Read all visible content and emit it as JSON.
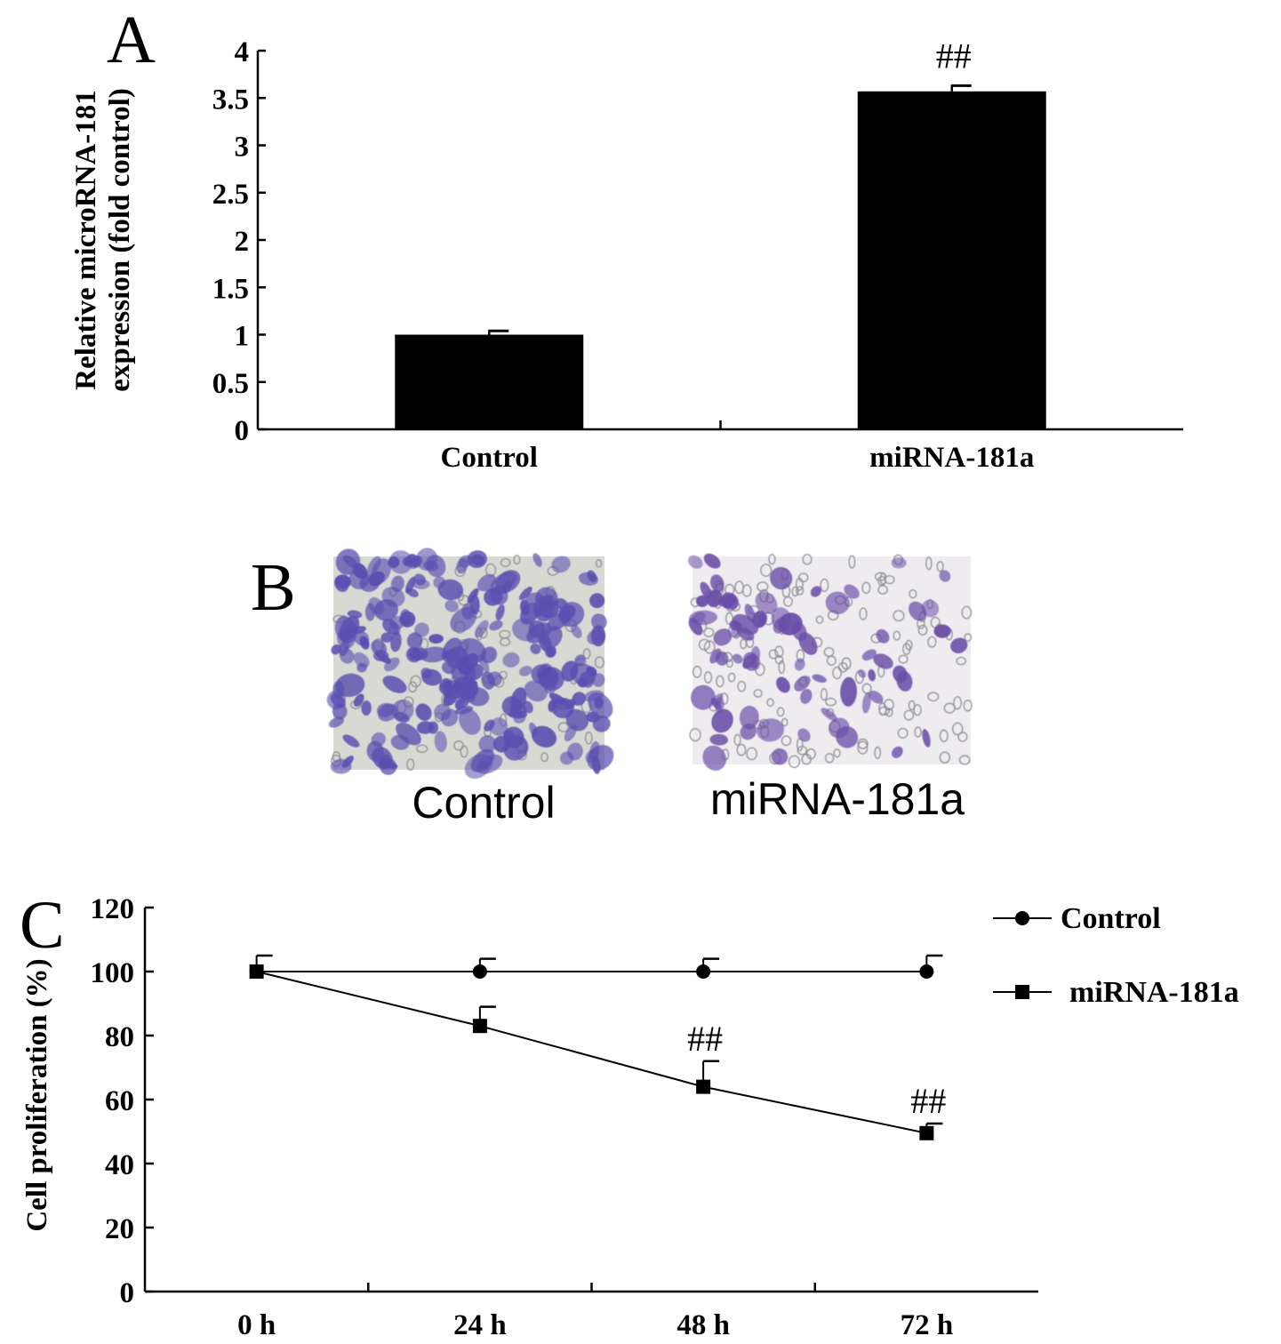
{
  "panels": {
    "a": {
      "letter": "A"
    },
    "b": {
      "letter": "B",
      "images": [
        {
          "caption": "Control",
          "cell_color": "#5a4fb0",
          "background_color": "#d9d9d3",
          "density": "high"
        },
        {
          "caption": "miRNA-181a",
          "cell_color": "#6a4ea8",
          "background_color": "#eeecef",
          "density": "low"
        }
      ]
    },
    "c": {
      "letter": "C"
    }
  },
  "chart_data": [
    {
      "type": "bar",
      "title": "",
      "ylabel": [
        "Relative microRNA-181",
        "expression (fold control)"
      ],
      "xlabel": "",
      "categories": [
        "Control",
        "miRNA-181a"
      ],
      "values": [
        1.0,
        3.57
      ],
      "errors": [
        0.04,
        0.06
      ],
      "annotations": [
        "",
        "##"
      ],
      "ylim": [
        0,
        4
      ],
      "yticks": [
        "0",
        "0.5",
        "1",
        "1.5",
        "2",
        "2.5",
        "3",
        "3.5",
        "4"
      ],
      "bar_color": "#000000",
      "grid": false
    },
    {
      "type": "line",
      "title": "",
      "ylabel": "Cell proliferation (%)",
      "xlabel": "",
      "categories": [
        "0 h",
        "24 h",
        "48 h",
        "72 h"
      ],
      "ylim": [
        0,
        120
      ],
      "yticks": [
        "0",
        "20",
        "40",
        "60",
        "80",
        "100",
        "120"
      ],
      "legend_position": "top-right",
      "grid": false,
      "series": [
        {
          "name": "Control",
          "marker": "circle",
          "values": [
            100,
            100,
            100,
            100
          ],
          "errors": [
            5,
            4,
            4,
            5
          ],
          "annotations": [
            "",
            "",
            "",
            ""
          ]
        },
        {
          "name": "miRNA-181a",
          "marker": "square",
          "values": [
            100,
            83,
            64,
            49.5
          ],
          "errors": [
            0,
            6,
            8,
            3
          ],
          "annotations": [
            "",
            "",
            "##",
            "##"
          ]
        }
      ]
    }
  ]
}
